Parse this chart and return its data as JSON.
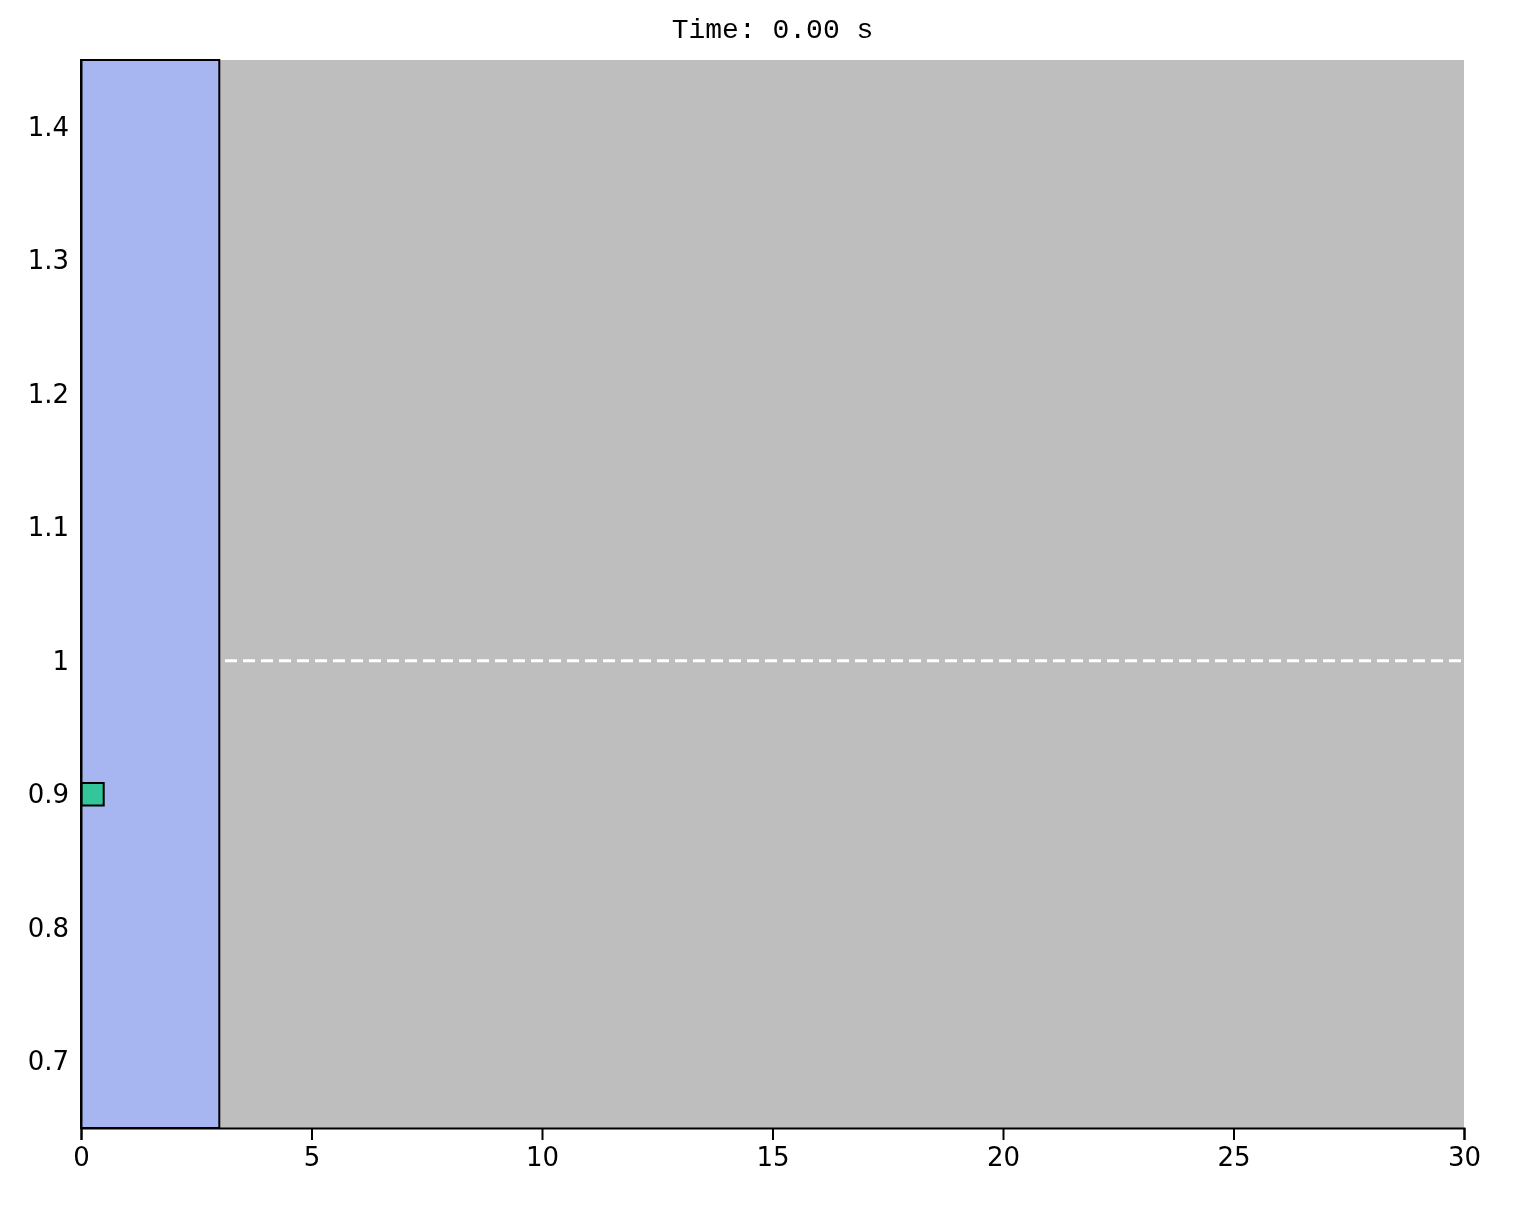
{
  "chart_data": {
    "type": "scatter",
    "title": "Time: 0.00 s",
    "series": [
      {
        "x": [
          0.25
        ],
        "values": [
          0.9
        ],
        "color": "#33c69a"
      }
    ],
    "marker": "square",
    "xlim": [
      0,
      30
    ],
    "xticks": [
      0,
      5,
      10,
      15,
      20,
      25,
      30
    ],
    "ylim": [
      0.65,
      1.45
    ],
    "yticks": [
      0.7,
      0.8,
      0.9,
      1,
      1.1,
      1.2,
      1.3,
      1.4
    ],
    "ref_lines": [
      {
        "axis": "y",
        "value": 1,
        "color": "#ffffff",
        "line_style": "dashed"
      }
    ],
    "bands": [
      {
        "axis": "x",
        "from": 0,
        "to": 3,
        "color": "#a7b6f0"
      }
    ],
    "grid": false
  }
}
